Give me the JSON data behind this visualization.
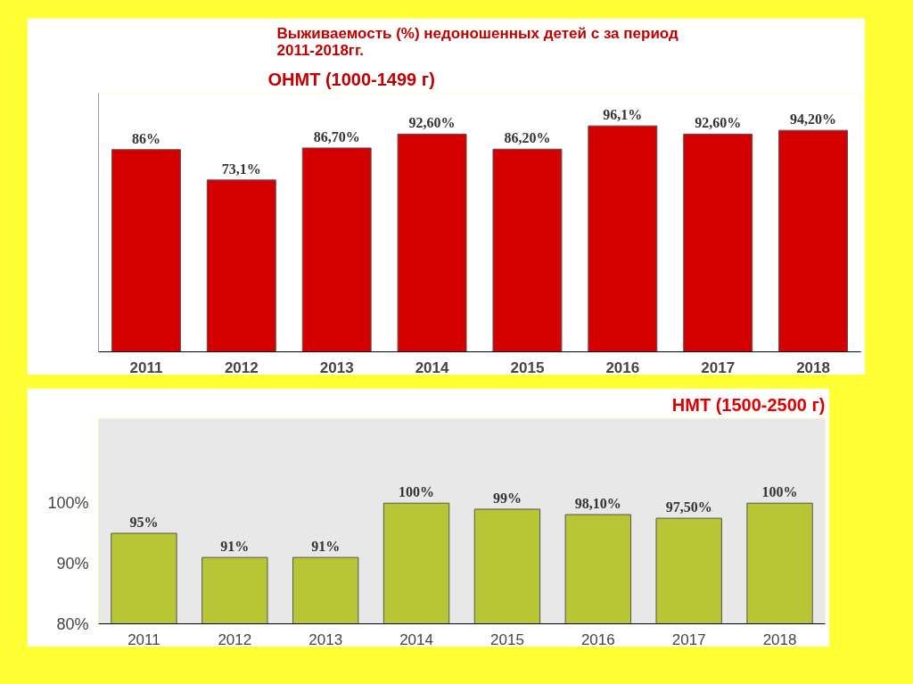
{
  "chart_data": [
    {
      "type": "bar",
      "title": "Выживаемость (%) недоношенных  детей с за период\n2011-2018гг.",
      "subtitle": "ОНМТ (1000-1499 г)",
      "categories": [
        "2011",
        "2012",
        "2013",
        "2014",
        "2015",
        "2016",
        "2017",
        "2018"
      ],
      "values": [
        86,
        73.1,
        86.7,
        92.6,
        86.2,
        96.1,
        92.6,
        94.2
      ],
      "color": "#d40000",
      "value_labels": [
        "86%",
        "73,1%",
        "86,70%",
        "92,60%",
        "86,20%",
        "96,1%",
        "92,60%",
        "94,20%"
      ],
      "ylim": [
        0,
        110
      ],
      "tick_labels": "x",
      "grid": false
    },
    {
      "type": "bar",
      "title": "НМТ (1500-2500 г)",
      "categories": [
        "2011",
        "2012",
        "2013",
        "2014",
        "2015",
        "2016",
        "2017",
        "2018"
      ],
      "values": [
        95,
        91,
        91,
        100,
        99,
        98.1,
        97.5,
        100
      ],
      "color": "#b8c534",
      "value_labels": [
        "95%",
        "91%",
        "91%",
        "100%",
        "99%",
        "98,10%",
        "97,50%",
        "100%"
      ],
      "ylim": [
        80,
        114
      ],
      "yticks": [
        {
          "value": 80,
          "label": "80%"
        },
        {
          "value": 90,
          "label": "90%"
        },
        {
          "value": 100,
          "label": "100%"
        }
      ],
      "grid": false
    }
  ]
}
